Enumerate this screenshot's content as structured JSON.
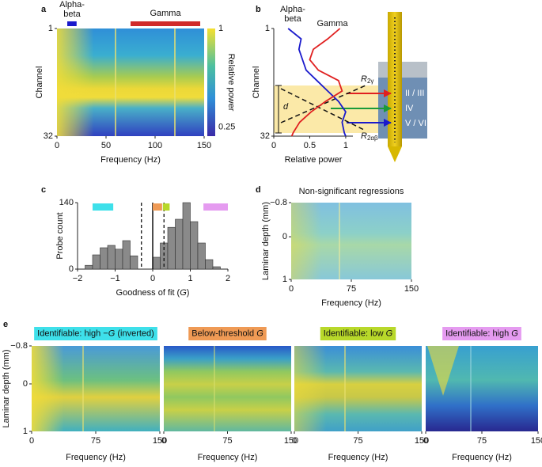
{
  "chart_data": [
    {
      "type": "heatmap",
      "panel_label": "a",
      "xlabel": "Frequency (Hz)",
      "ylabel": "Channel",
      "xlim": [
        0,
        150
      ],
      "xticks": [
        0,
        50,
        100,
        150
      ],
      "ylim": [
        1,
        32
      ],
      "yticks": [
        1,
        32
      ],
      "colorbar": {
        "label": "Relative power",
        "lim": [
          0.18,
          1
        ],
        "ticks": [
          1,
          0.25
        ]
      },
      "bands": [
        {
          "name_lines": [
            "Alpha-",
            "beta"
          ],
          "range": [
            10.5,
            20
          ],
          "color": "#1a1acc"
        },
        {
          "name_lines": [
            "Gamma"
          ],
          "range": [
            75,
            146
          ],
          "color": "#d02a2a"
        }
      ]
    },
    {
      "type": "line",
      "panel_label": "b",
      "xlabel": "Relative power",
      "ylabel": "Channel",
      "xlim": [
        0,
        1.1
      ],
      "xticks": [
        0,
        0.5,
        1
      ],
      "ylim": [
        1,
        32
      ],
      "yticks": [
        1,
        32
      ],
      "y": [
        1,
        4,
        7,
        10,
        13,
        16,
        19,
        22,
        25,
        28,
        31,
        32
      ],
      "series": [
        {
          "name_lines": [
            "Alpha-",
            "beta"
          ],
          "color": "#1a1acc",
          "values": [
            0.2,
            0.38,
            0.35,
            0.4,
            0.45,
            0.6,
            0.75,
            0.9,
            1.0,
            0.95,
            0.98,
            1.0
          ]
        },
        {
          "name_lines": [
            "Gamma"
          ],
          "color": "#e02020",
          "values": [
            0.92,
            0.75,
            0.55,
            0.5,
            0.62,
            0.9,
            0.95,
            0.72,
            0.52,
            0.36,
            0.27,
            0.25
          ]
        }
      ],
      "annotations": {
        "d": "d",
        "r2g": [
          "R",
          "2γ"
        ],
        "r2ab": [
          "R",
          "2αβ"
        ],
        "layers": [
          "II / III",
          "IV",
          "V / VI"
        ]
      }
    },
    {
      "type": "histogram",
      "panel_label": "c",
      "xlabel": [
        "Goodness of fit (",
        "G",
        ")"
      ],
      "ylabel": "Probe count",
      "bins": [
        -1.8,
        -1.6,
        -1.4,
        -1.2,
        -1.0,
        -0.8,
        -0.6,
        -0.4,
        -0.2,
        0,
        0.2,
        0.4,
        0.6,
        0.8,
        1.0,
        1.2,
        1.4,
        1.6,
        1.8
      ],
      "counts": [
        8,
        30,
        45,
        50,
        42,
        60,
        28,
        0,
        0,
        25,
        55,
        88,
        105,
        140,
        100,
        55,
        20,
        5
      ],
      "color": "#8a8a8a",
      "xlim": [
        -2,
        2
      ],
      "xticks": [
        {
          "value": -2,
          "label": "−2"
        },
        {
          "value": -1,
          "label": "−1"
        },
        0,
        1,
        2
      ],
      "ylim": [
        0,
        140
      ],
      "yticks": [
        0,
        140
      ],
      "thresholds": [
        -0.3,
        0.3
      ],
      "category_ranges": [
        {
          "range": [
            -1.6,
            -1.05
          ],
          "color": "#3ee0ea"
        },
        {
          "range": [
            0.0,
            0.25
          ],
          "color": "#ef9a55"
        },
        {
          "range": [
            0.27,
            0.45
          ],
          "color": "#b8d82a"
        },
        {
          "range": [
            1.35,
            2.0
          ],
          "color": "#e59bf0"
        }
      ]
    },
    {
      "type": "heatmap",
      "panel_label": "d",
      "title": "Non-significant regressions",
      "xlabel": "Frequency (Hz)",
      "ylabel": "Laminar depth (mm)",
      "xlim": [
        0,
        150
      ],
      "xticks": [
        0,
        75,
        150
      ],
      "ylim": [
        -0.8,
        1
      ],
      "yticks": [
        {
          "value": -0.8,
          "label": "−0.8"
        },
        0,
        1
      ]
    },
    {
      "type": "heatmap",
      "panel_label": "e",
      "title": [
        "Identifiable: high −",
        "G",
        " (inverted)"
      ],
      "title_color": "#3ee0ea",
      "xlabel": "Frequency (Hz)",
      "ylabel": "Laminar depth (mm)",
      "xlim": [
        0,
        150
      ],
      "xticks": [
        0,
        75,
        150
      ],
      "ylim": [
        -0.8,
        1
      ],
      "yticks": [
        {
          "value": -0.8,
          "label": "−0.8"
        },
        0,
        1
      ]
    },
    {
      "type": "heatmap",
      "title": [
        "Below-threshold ",
        "G"
      ],
      "title_color": "#ef9a55",
      "xlabel": "Frequency (Hz)",
      "xlim": [
        0,
        150
      ],
      "xticks": [
        0,
        75,
        150
      ],
      "ylim": [
        -0.8,
        1
      ]
    },
    {
      "type": "heatmap",
      "title": [
        "Identifiable: low ",
        "G"
      ],
      "title_color": "#b8d82a",
      "xlabel": "Frequency (Hz)",
      "xlim": [
        0,
        150
      ],
      "xticks": [
        0,
        75,
        150
      ],
      "ylim": [
        -0.8,
        1
      ]
    },
    {
      "type": "heatmap",
      "title": [
        "Identifiable: high ",
        "G"
      ],
      "title_color": "#e59bf0",
      "xlabel": "Frequency (Hz)",
      "xlim": [
        0,
        150
      ],
      "xticks": [
        0,
        75,
        150
      ],
      "ylim": [
        -0.8,
        1
      ]
    }
  ]
}
